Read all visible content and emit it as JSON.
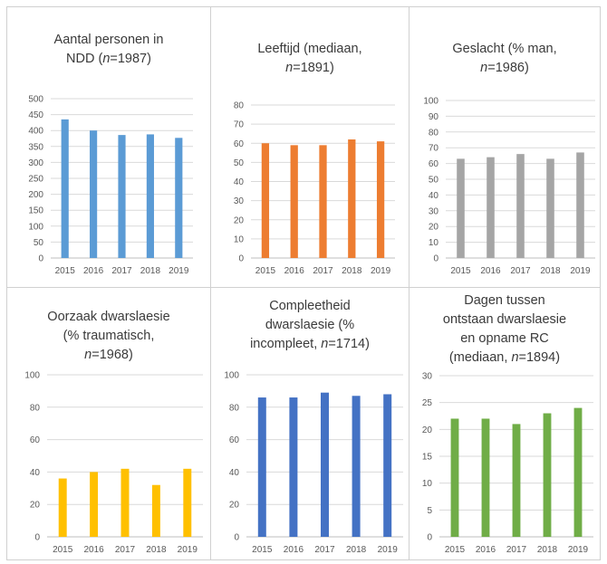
{
  "chart_data": [
    {
      "type": "bar",
      "title_parts": [
        {
          "text": "Aantal personen in",
          "br": true
        },
        {
          "text": "NDD ("
        },
        {
          "text": "n",
          "italic": true
        },
        {
          "text": "=1987)"
        }
      ],
      "categories": [
        "2015",
        "2016",
        "2017",
        "2018",
        "2019"
      ],
      "values": [
        435,
        400,
        386,
        388,
        377
      ],
      "ylim": [
        0,
        500
      ],
      "yticks": [
        0,
        50,
        100,
        150,
        200,
        250,
        300,
        350,
        400,
        450,
        500
      ],
      "color": "#5b9bd5"
    },
    {
      "type": "bar",
      "title_parts": [
        {
          "text": "Leeftijd (mediaan,",
          "br": true
        },
        {
          "text": "n",
          "italic": true
        },
        {
          "text": "=1891)"
        }
      ],
      "categories": [
        "2015",
        "2016",
        "2017",
        "2018",
        "2019"
      ],
      "values": [
        60,
        59,
        59,
        62,
        61
      ],
      "ylim": [
        0,
        80
      ],
      "yticks": [
        0,
        10,
        20,
        30,
        40,
        50,
        60,
        70,
        80
      ],
      "color": "#ed7d31"
    },
    {
      "type": "bar",
      "title_parts": [
        {
          "text": "Geslacht (% man,",
          "br": true
        },
        {
          "text": "n",
          "italic": true
        },
        {
          "text": "=1986)"
        }
      ],
      "categories": [
        "2015",
        "2016",
        "2017",
        "2018",
        "2019"
      ],
      "values": [
        63,
        64,
        66,
        63,
        67
      ],
      "ylim": [
        0,
        100
      ],
      "yticks": [
        0,
        10,
        20,
        30,
        40,
        50,
        60,
        70,
        80,
        90,
        100
      ],
      "color": "#a5a5a5"
    },
    {
      "type": "bar",
      "title_parts": [
        {
          "text": "Oorzaak dwarslaesie",
          "br": true
        },
        {
          "text": "(% traumatisch,",
          "br": true
        },
        {
          "text": "n",
          "italic": true
        },
        {
          "text": "=1968)"
        }
      ],
      "categories": [
        "2015",
        "2016",
        "2017",
        "2018",
        "2019"
      ],
      "values": [
        36,
        40,
        42,
        32,
        42
      ],
      "ylim": [
        0,
        100
      ],
      "yticks": [
        0,
        20,
        40,
        60,
        80,
        100
      ],
      "color": "#ffc000"
    },
    {
      "type": "bar",
      "title_parts": [
        {
          "text": "Compleetheid",
          "br": true
        },
        {
          "text": "dwarslaesie (%",
          "br": true
        },
        {
          "text": "incompleet, "
        },
        {
          "text": "n",
          "italic": true
        },
        {
          "text": "=1714)"
        }
      ],
      "categories": [
        "2015",
        "2016",
        "2017",
        "2018",
        "2019"
      ],
      "values": [
        86,
        86,
        89,
        87,
        88
      ],
      "ylim": [
        0,
        100
      ],
      "yticks": [
        0,
        20,
        40,
        60,
        80,
        100
      ],
      "color": "#4472c4"
    },
    {
      "type": "bar",
      "title_parts": [
        {
          "text": "Dagen tussen",
          "br": true
        },
        {
          "text": "ontstaan dwarslaesie",
          "br": true
        },
        {
          "text": "en opname RC",
          "br": true
        },
        {
          "text": "(mediaan, "
        },
        {
          "text": "n",
          "italic": true
        },
        {
          "text": "=1894)"
        }
      ],
      "categories": [
        "2015",
        "2016",
        "2017",
        "2018",
        "2019"
      ],
      "values": [
        22,
        22,
        21,
        23,
        24
      ],
      "ylim": [
        0,
        30
      ],
      "yticks": [
        0,
        5,
        10,
        15,
        20,
        25,
        30
      ],
      "color": "#70ad47"
    }
  ]
}
